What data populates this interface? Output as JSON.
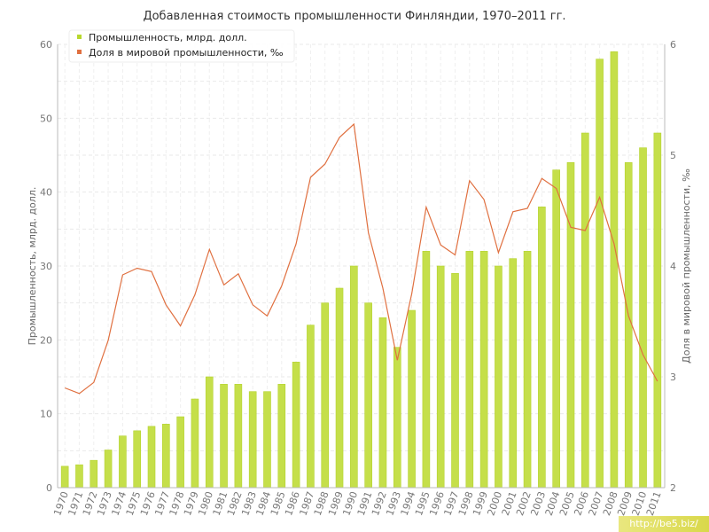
{
  "chart_data": {
    "type": "bar+line",
    "title": "Добавленная стоимость промышленности Финляндии, 1970–2011 гг.",
    "ylabel_left": "Промышленность, млрд. долл.",
    "ylabel_right": "Доля в мировой промышленности, ‰",
    "ylim_left": [
      0,
      60
    ],
    "ylim_right": [
      2,
      6
    ],
    "yticks_left": [
      0,
      10,
      20,
      30,
      40,
      50,
      60
    ],
    "yticks_right": [
      2,
      3,
      4,
      5,
      6
    ],
    "grid": true,
    "legend_position": "top-left",
    "categories": [
      "1970",
      "1971",
      "1972",
      "1973",
      "1974",
      "1975",
      "1976",
      "1977",
      "1978",
      "1979",
      "1980",
      "1981",
      "1982",
      "1983",
      "1984",
      "1985",
      "1986",
      "1987",
      "1988",
      "1989",
      "1990",
      "1991",
      "1992",
      "1993",
      "1994",
      "1995",
      "1996",
      "1997",
      "1998",
      "1999",
      "2000",
      "2001",
      "2002",
      "2003",
      "2004",
      "2005",
      "2006",
      "2007",
      "2008",
      "2009",
      "2010",
      "2011"
    ],
    "series": [
      {
        "name": "Промышленность, млрд. долл.",
        "kind": "bar",
        "axis": "left",
        "color": "#c5df4a",
        "values": [
          2.9,
          3.1,
          3.7,
          5.1,
          7.0,
          7.7,
          8.3,
          8.6,
          9.6,
          12.0,
          15.0,
          14.0,
          14.0,
          13.0,
          13.0,
          14.0,
          17.0,
          22.0,
          25.0,
          27.0,
          30.0,
          25.0,
          23.0,
          19.0,
          24.0,
          32.0,
          30.0,
          29.0,
          32.0,
          32.0,
          30.0,
          31.0,
          32.0,
          38.0,
          43.0,
          44.0,
          48.0,
          58.0,
          59.0,
          44.0,
          46.0,
          48.0
        ]
      },
      {
        "name": "Доля в мировой промышленности, ‰",
        "kind": "line",
        "axis": "right",
        "color": "#e07040",
        "values": [
          2.9,
          2.85,
          2.95,
          3.33,
          3.92,
          3.98,
          3.95,
          3.65,
          3.46,
          3.74,
          4.15,
          3.83,
          3.93,
          3.65,
          3.55,
          3.82,
          4.2,
          4.8,
          4.92,
          5.16,
          5.28,
          4.3,
          3.8,
          3.15,
          3.75,
          4.53,
          4.19,
          4.1,
          4.77,
          4.6,
          4.12,
          4.49,
          4.52,
          4.79,
          4.7,
          4.35,
          4.32,
          4.62,
          4.2,
          3.55,
          3.2,
          2.96
        ]
      }
    ]
  },
  "watermark": "http://be5.biz/"
}
